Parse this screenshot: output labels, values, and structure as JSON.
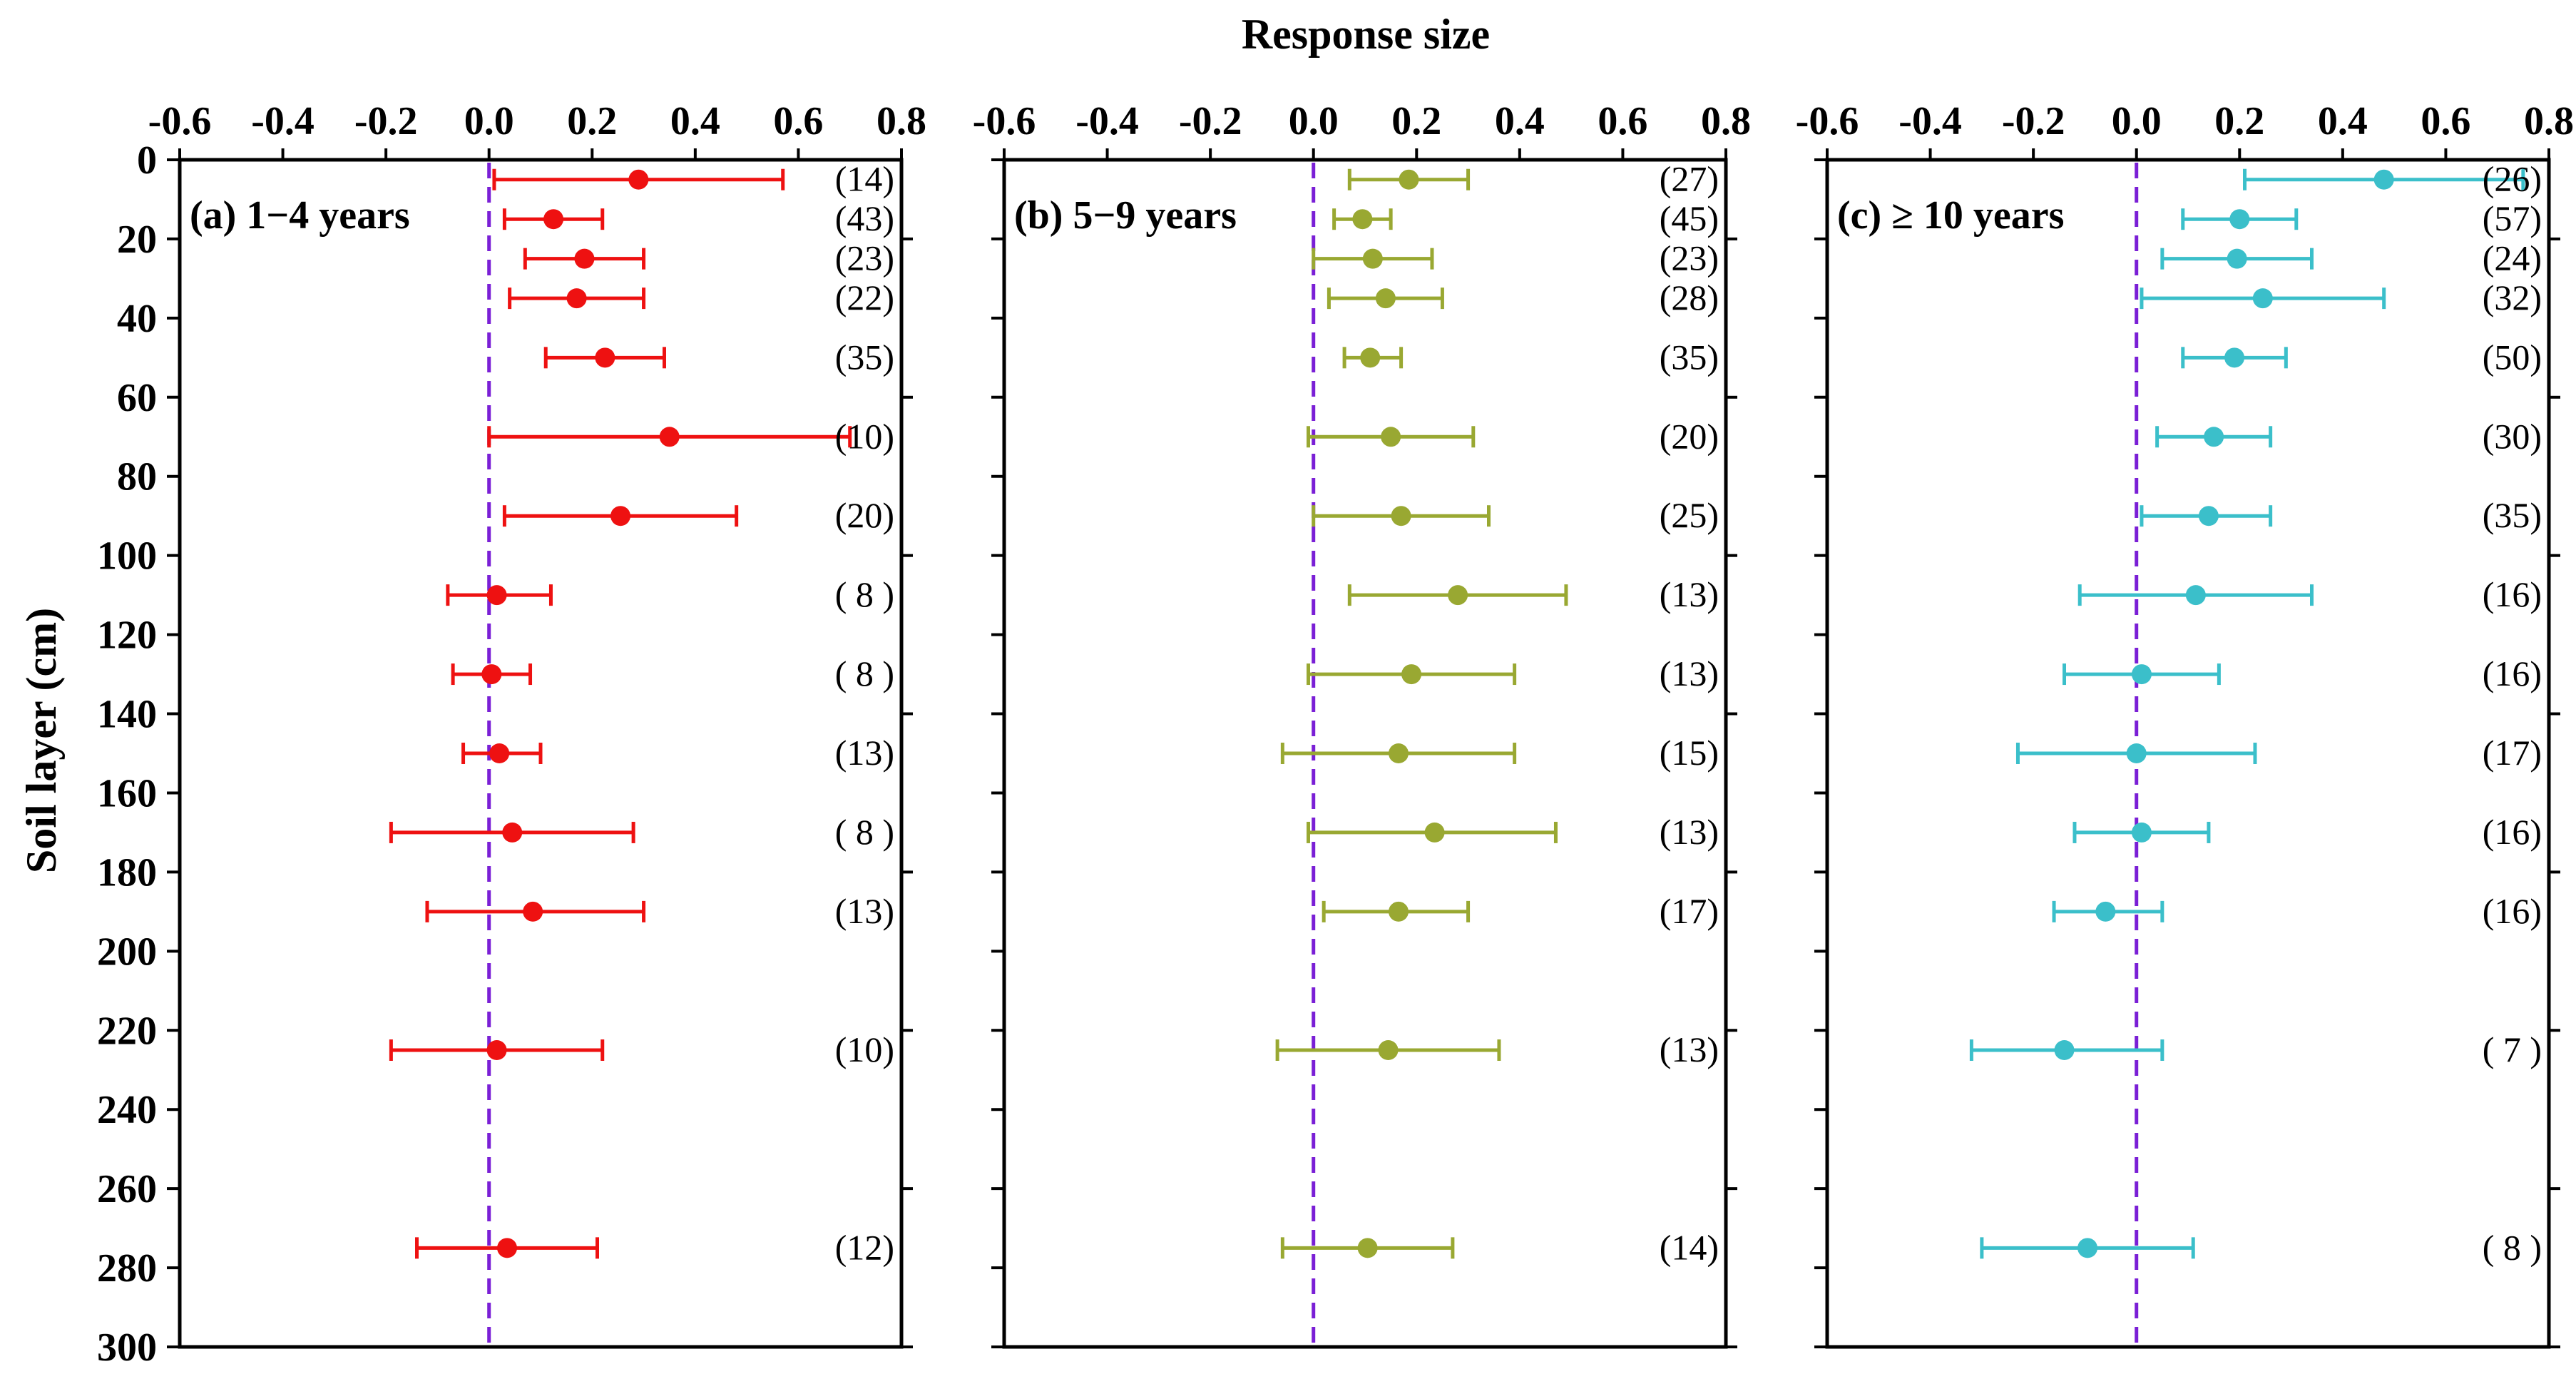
{
  "chart_data": {
    "type": "errorbar-forest",
    "title": "Response size",
    "xlabel": "Response size",
    "ylabel": "Soil layer (cm)",
    "xlim": [
      -0.6,
      0.8
    ],
    "ylim": [
      0,
      300
    ],
    "y_inverted": true,
    "x_ticks": [
      "-0.6",
      "-0.4",
      "-0.2",
      "0.0",
      "0.2",
      "0.4",
      "0.6",
      "0.8"
    ],
    "y_ticks": [
      "0",
      "20",
      "40",
      "60",
      "80",
      "100",
      "120",
      "140",
      "160",
      "180",
      "200",
      "220",
      "240",
      "260",
      "280",
      "300"
    ],
    "reference_line": {
      "x": 0,
      "style": "dashed",
      "color": "#7a1fd6"
    },
    "panels": [
      {
        "label": "(a) 1−4 years",
        "color": "#ee1111",
        "points": [
          {
            "depth": 5,
            "mean": 0.29,
            "lower": 0.01,
            "upper": 0.57,
            "n": "(14)"
          },
          {
            "depth": 15,
            "mean": 0.125,
            "lower": 0.03,
            "upper": 0.22,
            "n": "(43)"
          },
          {
            "depth": 25,
            "mean": 0.185,
            "lower": 0.07,
            "upper": 0.3,
            "n": "(23)"
          },
          {
            "depth": 35,
            "mean": 0.17,
            "lower": 0.04,
            "upper": 0.3,
            "n": "(22)"
          },
          {
            "depth": 50,
            "mean": 0.225,
            "lower": 0.11,
            "upper": 0.34,
            "n": "(35)"
          },
          {
            "depth": 70,
            "mean": 0.35,
            "lower": 0.0,
            "upper": 0.7,
            "n": "(10)"
          },
          {
            "depth": 90,
            "mean": 0.255,
            "lower": 0.03,
            "upper": 0.48,
            "n": "(20)"
          },
          {
            "depth": 110,
            "mean": 0.015,
            "lower": -0.08,
            "upper": 0.12,
            "n": "( 8 )"
          },
          {
            "depth": 130,
            "mean": 0.005,
            "lower": -0.07,
            "upper": 0.08,
            "n": "( 8 )"
          },
          {
            "depth": 150,
            "mean": 0.02,
            "lower": -0.05,
            "upper": 0.1,
            "n": "(13)"
          },
          {
            "depth": 170,
            "mean": 0.045,
            "lower": -0.19,
            "upper": 0.28,
            "n": "( 8 )"
          },
          {
            "depth": 190,
            "mean": 0.085,
            "lower": -0.12,
            "upper": 0.3,
            "n": "(13)"
          },
          {
            "depth": 225,
            "mean": 0.015,
            "lower": -0.19,
            "upper": 0.22,
            "n": "(10)"
          },
          {
            "depth": 275,
            "mean": 0.035,
            "lower": -0.14,
            "upper": 0.21,
            "n": "(12)"
          }
        ]
      },
      {
        "label": "(b) 5−9 years",
        "color": "#99a832",
        "points": [
          {
            "depth": 5,
            "mean": 0.185,
            "lower": 0.07,
            "upper": 0.3,
            "n": "(27)"
          },
          {
            "depth": 15,
            "mean": 0.095,
            "lower": 0.04,
            "upper": 0.15,
            "n": "(45)"
          },
          {
            "depth": 25,
            "mean": 0.115,
            "lower": 0.0,
            "upper": 0.23,
            "n": "(23)"
          },
          {
            "depth": 35,
            "mean": 0.14,
            "lower": 0.03,
            "upper": 0.25,
            "n": "(28)"
          },
          {
            "depth": 50,
            "mean": 0.11,
            "lower": 0.06,
            "upper": 0.17,
            "n": "(35)"
          },
          {
            "depth": 70,
            "mean": 0.15,
            "lower": -0.01,
            "upper": 0.31,
            "n": "(20)"
          },
          {
            "depth": 90,
            "mean": 0.17,
            "lower": 0.0,
            "upper": 0.34,
            "n": "(25)"
          },
          {
            "depth": 110,
            "mean": 0.28,
            "lower": 0.07,
            "upper": 0.49,
            "n": "(13)"
          },
          {
            "depth": 130,
            "mean": 0.19,
            "lower": -0.01,
            "upper": 0.39,
            "n": "(13)"
          },
          {
            "depth": 150,
            "mean": 0.165,
            "lower": -0.06,
            "upper": 0.39,
            "n": "(15)"
          },
          {
            "depth": 170,
            "mean": 0.235,
            "lower": -0.01,
            "upper": 0.47,
            "n": "(13)"
          },
          {
            "depth": 190,
            "mean": 0.165,
            "lower": 0.02,
            "upper": 0.3,
            "n": "(17)"
          },
          {
            "depth": 225,
            "mean": 0.145,
            "lower": -0.07,
            "upper": 0.36,
            "n": "(13)"
          },
          {
            "depth": 275,
            "mean": 0.105,
            "lower": -0.06,
            "upper": 0.27,
            "n": "(14)"
          }
        ]
      },
      {
        "label": "(c) ≥ 10 years",
        "color": "#3bbfca",
        "points": [
          {
            "depth": 5,
            "mean": 0.48,
            "lower": 0.21,
            "upper": 0.75,
            "n": "(26)"
          },
          {
            "depth": 15,
            "mean": 0.2,
            "lower": 0.09,
            "upper": 0.31,
            "n": "(57)"
          },
          {
            "depth": 25,
            "mean": 0.195,
            "lower": 0.05,
            "upper": 0.34,
            "n": "(24)"
          },
          {
            "depth": 35,
            "mean": 0.245,
            "lower": 0.01,
            "upper": 0.48,
            "n": "(32)"
          },
          {
            "depth": 50,
            "mean": 0.19,
            "lower": 0.09,
            "upper": 0.29,
            "n": "(50)"
          },
          {
            "depth": 70,
            "mean": 0.15,
            "lower": 0.04,
            "upper": 0.26,
            "n": "(30)"
          },
          {
            "depth": 90,
            "mean": 0.14,
            "lower": 0.01,
            "upper": 0.26,
            "n": "(35)"
          },
          {
            "depth": 110,
            "mean": 0.115,
            "lower": -0.11,
            "upper": 0.34,
            "n": "(16)"
          },
          {
            "depth": 130,
            "mean": 0.01,
            "lower": -0.14,
            "upper": 0.16,
            "n": "(16)"
          },
          {
            "depth": 150,
            "mean": 0.0,
            "lower": -0.23,
            "upper": 0.23,
            "n": "(17)"
          },
          {
            "depth": 170,
            "mean": 0.01,
            "lower": -0.12,
            "upper": 0.14,
            "n": "(16)"
          },
          {
            "depth": 190,
            "mean": -0.06,
            "lower": -0.16,
            "upper": 0.05,
            "n": "(16)"
          },
          {
            "depth": 225,
            "mean": -0.14,
            "lower": -0.32,
            "upper": 0.05,
            "n": "( 7 )"
          },
          {
            "depth": 275,
            "mean": -0.095,
            "lower": -0.3,
            "upper": 0.11,
            "n": "( 8 )"
          }
        ]
      }
    ]
  }
}
